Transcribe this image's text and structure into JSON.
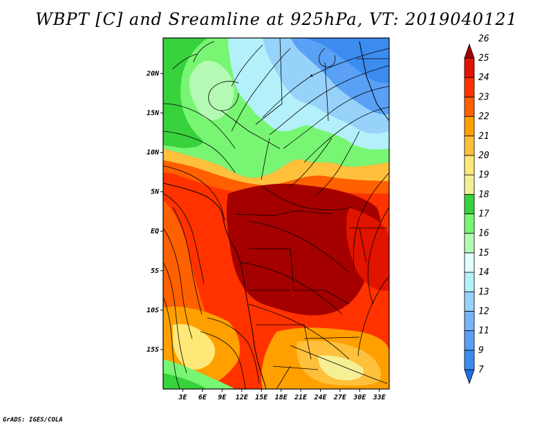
{
  "title": "WBPT [C] and Sreamline at 925hPa, VT: 2019040121",
  "footer": "GrADS: IGES/COLA",
  "axes": {
    "lat_labels": [
      "20N",
      "15N",
      "10N",
      "5N",
      "EQ",
      "5S",
      "10S",
      "15S"
    ],
    "lat_values": [
      20,
      15,
      10,
      5,
      0,
      -5,
      -10,
      -15
    ],
    "lon_labels": [
      "3E",
      "6E",
      "9E",
      "12E",
      "15E",
      "18E",
      "21E",
      "24E",
      "27E",
      "30E",
      "33E"
    ],
    "lon_values": [
      3,
      6,
      9,
      12,
      15,
      18,
      21,
      24,
      27,
      30,
      33
    ],
    "lon_range": [
      0,
      34.5
    ],
    "lat_range": [
      -20,
      24.5
    ]
  },
  "colorbar": {
    "labels": [
      "7",
      "9",
      "11",
      "12",
      "13",
      "14",
      "15",
      "16",
      "17",
      "18",
      "19",
      "20",
      "21",
      "22",
      "23",
      "24",
      "25",
      "26"
    ],
    "colors": [
      "#1e6ee6",
      "#3c8cf0",
      "#5aa0f5",
      "#78b4fa",
      "#96d2fa",
      "#b4f0fa",
      "#e1ffff",
      "#b4fab4",
      "#78f573",
      "#37d23c",
      "#f5f096",
      "#ffe878",
      "#ffc03c",
      "#ffa000",
      "#ff6000",
      "#ff3200",
      "#e11400",
      "#a50000"
    ]
  },
  "regions": [
    {
      "name": "cool-blue-north",
      "color": "#5aa0f5"
    },
    {
      "name": "green-sahel",
      "color": "#78f573"
    },
    {
      "name": "warm-red-tropics",
      "color": "#e11400"
    },
    {
      "name": "dark-red-congo",
      "color": "#a50000"
    },
    {
      "name": "orange-south",
      "color": "#ff6000"
    }
  ]
}
